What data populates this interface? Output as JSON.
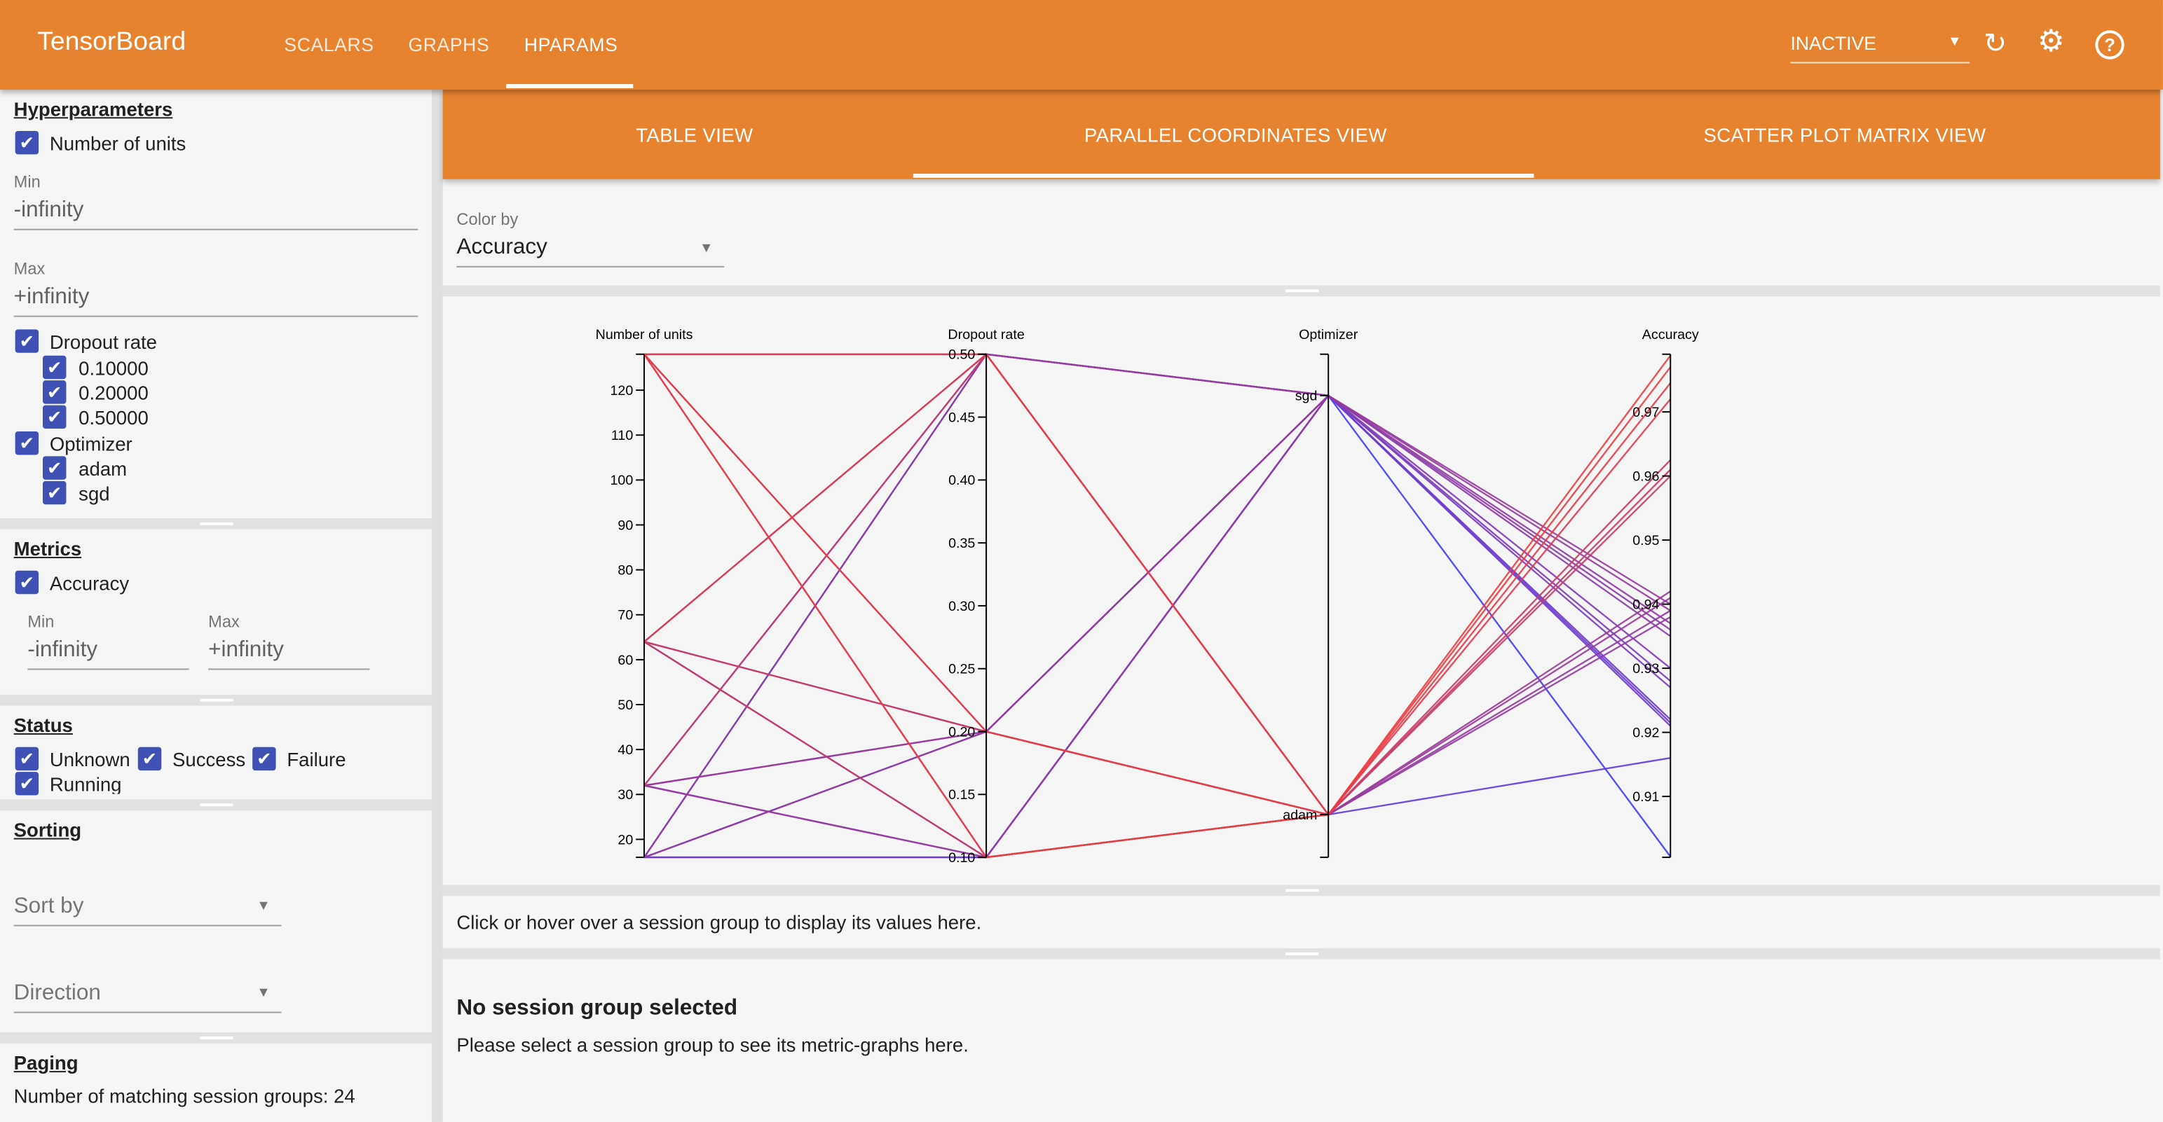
{
  "header": {
    "title": "TensorBoard",
    "tabs": [
      "SCALARS",
      "GRAPHS",
      "HPARAMS"
    ],
    "active_tab": "HPARAMS",
    "run_select": "INACTIVE",
    "icons": [
      "refresh-icon",
      "settings-gear-icon",
      "help-icon"
    ],
    "accent": "#e7832f"
  },
  "sidebar": {
    "hyperparameters": {
      "title": "Hyperparameters",
      "units_label": "Number of units",
      "min_label": "Min",
      "min_value": "-infinity",
      "max_label": "Max",
      "max_value": "+infinity",
      "dropout_label": "Dropout rate",
      "dropout_values": [
        "0.10000",
        "0.20000",
        "0.50000"
      ],
      "optimizer_label": "Optimizer",
      "optimizer_values": [
        "adam",
        "sgd"
      ]
    },
    "metrics": {
      "title": "Metrics",
      "accuracy_label": "Accuracy",
      "min_label": "Min",
      "min_value": "-infinity",
      "max_label": "Max",
      "max_value": "+infinity"
    },
    "status": {
      "title": "Status",
      "items": [
        "Unknown",
        "Success",
        "Failure",
        "Running"
      ]
    },
    "sorting": {
      "title": "Sorting",
      "sort_by": "Sort by",
      "direction": "Direction"
    },
    "paging": {
      "title": "Paging",
      "matching": "Number of matching session groups: 24"
    }
  },
  "main": {
    "tabs": [
      "TABLE VIEW",
      "PARALLEL COORDINATES VIEW",
      "SCATTER PLOT MATRIX VIEW"
    ],
    "active_tab": "PARALLEL COORDINATES VIEW",
    "color_by_label": "Color by",
    "color_by_value": "Accuracy",
    "hover_hint": "Click or hover over a session group to display its values here.",
    "no_selection_title": "No session group selected",
    "no_selection_text": "Please select a session group to see its metric-graphs here."
  },
  "chart_data": {
    "type": "parallel-coordinates",
    "axes": [
      {
        "name": "Number of units",
        "range": [
          16,
          128
        ],
        "ticks": [
          "20",
          "30",
          "40",
          "50",
          "60",
          "70",
          "80",
          "90",
          "100",
          "110",
          "120"
        ]
      },
      {
        "name": "Dropout rate",
        "range": [
          0.1,
          0.5
        ],
        "ticks": [
          "0.10",
          "0.15",
          "0.20",
          "0.25",
          "0.30",
          "0.35",
          "0.40",
          "0.45",
          "0.50"
        ]
      },
      {
        "name": "Optimizer",
        "categories": [
          "sgd",
          "adam"
        ]
      },
      {
        "name": "Accuracy",
        "range": [
          0.9005,
          0.979
        ],
        "ticks": [
          "0.91",
          "0.92",
          "0.93",
          "0.94",
          "0.95",
          "0.96",
          "0.97"
        ]
      }
    ],
    "color_scale": {
      "low": "#3c3cff",
      "high": "#f03c3c"
    },
    "sessions": [
      {
        "units": 16,
        "dropout": 0.1,
        "optimizer": "adam",
        "accuracy": 0.916
      },
      {
        "units": 16,
        "dropout": 0.2,
        "optimizer": "adam",
        "accuracy": 0.938
      },
      {
        "units": 16,
        "dropout": 0.5,
        "optimizer": "adam",
        "accuracy": 0.939
      },
      {
        "units": 16,
        "dropout": 0.1,
        "optimizer": "sgd",
        "accuracy": 0.921
      },
      {
        "units": 16,
        "dropout": 0.2,
        "optimizer": "sgd",
        "accuracy": 0.922
      },
      {
        "units": 16,
        "dropout": 0.5,
        "optimizer": "sgd",
        "accuracy": 0.9006
      },
      {
        "units": 32,
        "dropout": 0.1,
        "optimizer": "adam",
        "accuracy": 0.941
      },
      {
        "units": 32,
        "dropout": 0.2,
        "optimizer": "adam",
        "accuracy": 0.942
      },
      {
        "units": 32,
        "dropout": 0.5,
        "optimizer": "adam",
        "accuracy": 0.96
      },
      {
        "units": 32,
        "dropout": 0.1,
        "optimizer": "sgd",
        "accuracy": 0.9215
      },
      {
        "units": 32,
        "dropout": 0.2,
        "optimizer": "sgd",
        "accuracy": 0.927
      },
      {
        "units": 32,
        "dropout": 0.5,
        "optimizer": "sgd",
        "accuracy": 0.93
      },
      {
        "units": 64,
        "dropout": 0.1,
        "optimizer": "adam",
        "accuracy": 0.961
      },
      {
        "units": 64,
        "dropout": 0.2,
        "optimizer": "adam",
        "accuracy": 0.9625
      },
      {
        "units": 64,
        "dropout": 0.5,
        "optimizer": "adam",
        "accuracy": 0.972
      },
      {
        "units": 64,
        "dropout": 0.1,
        "optimizer": "sgd",
        "accuracy": 0.928
      },
      {
        "units": 64,
        "dropout": 0.2,
        "optimizer": "sgd",
        "accuracy": 0.935
      },
      {
        "units": 64,
        "dropout": 0.5,
        "optimizer": "sgd",
        "accuracy": 0.936
      },
      {
        "units": 128,
        "dropout": 0.1,
        "optimizer": "adam",
        "accuracy": 0.9788
      },
      {
        "units": 128,
        "dropout": 0.2,
        "optimizer": "adam",
        "accuracy": 0.977
      },
      {
        "units": 128,
        "dropout": 0.5,
        "optimizer": "adam",
        "accuracy": 0.9745
      },
      {
        "units": 128,
        "dropout": 0.1,
        "optimizer": "sgd",
        "accuracy": 0.937
      },
      {
        "units": 128,
        "dropout": 0.2,
        "optimizer": "sgd",
        "accuracy": 0.939
      },
      {
        "units": 128,
        "dropout": 0.5,
        "optimizer": "sgd",
        "accuracy": 0.94
      }
    ]
  }
}
